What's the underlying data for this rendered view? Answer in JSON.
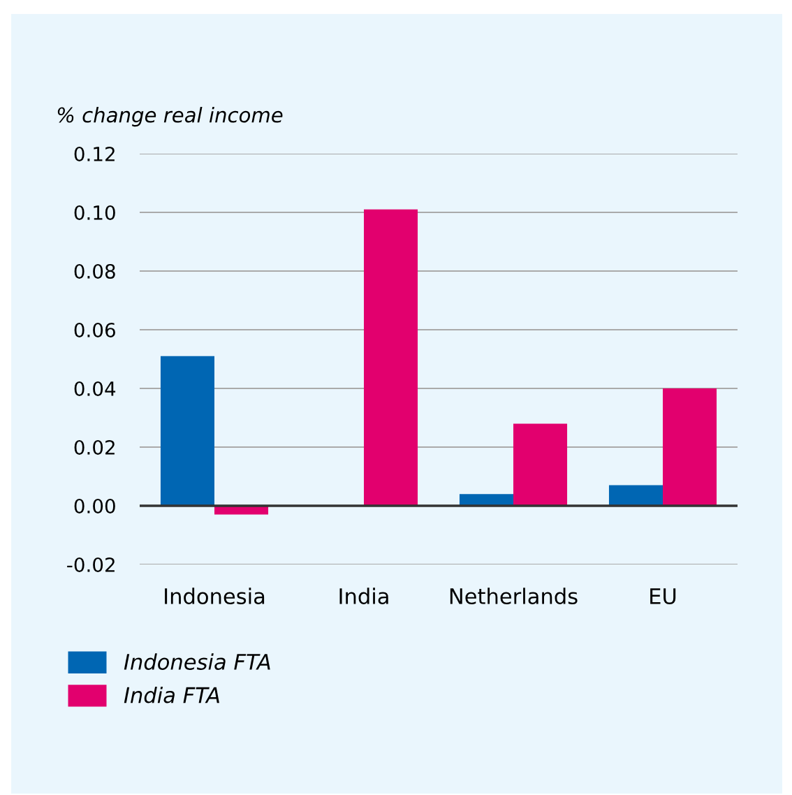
{
  "chart_data": {
    "type": "bar",
    "ylabel": "% change real income",
    "categories": [
      "Indonesia",
      "India",
      "Netherlands",
      "EU"
    ],
    "series": [
      {
        "name": "Indonesia FTA",
        "color": "#0066b3",
        "values": [
          0.051,
          0,
          0.004,
          0.007
        ]
      },
      {
        "name": "India FTA",
        "color": "#e2006e",
        "values": [
          -0.003,
          0.101,
          0.028,
          0.04
        ]
      }
    ],
    "ylim": [
      -0.02,
      0.12
    ],
    "yticks": [
      {
        "value": -0.02,
        "label": "-0.02"
      },
      {
        "value": 0,
        "label": "0.00"
      },
      0.02,
      0.04,
      0.06,
      0.08,
      {
        "value": 0.1,
        "label": "0.10"
      },
      0.12
    ],
    "grid": "y",
    "legend": "bottom left",
    "ref_lines": [
      {
        "axis": "y",
        "value": 0,
        "color": "#333333"
      }
    ]
  }
}
